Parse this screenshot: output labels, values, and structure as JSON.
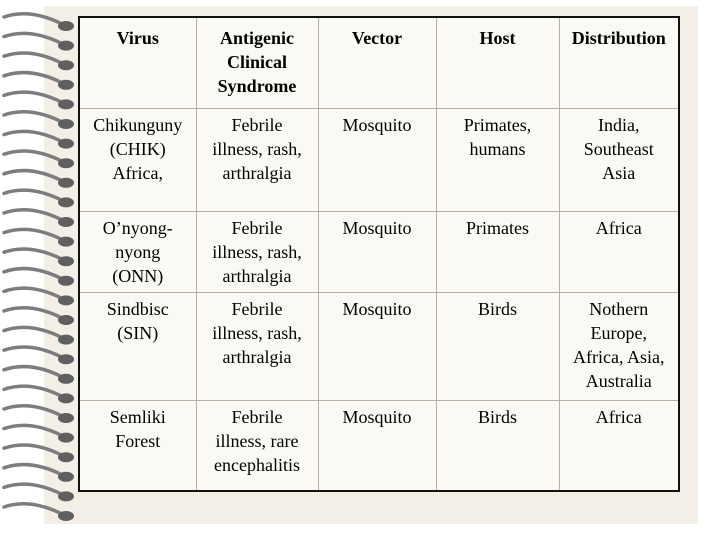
{
  "table": {
    "headers": [
      [
        "Virus"
      ],
      [
        "Antigenic",
        "Clinical",
        "Syndrome"
      ],
      [
        "Vector"
      ],
      [
        "Host"
      ],
      [
        "Distribution"
      ]
    ],
    "rows": [
      [
        [
          "Chikunguny",
          "(CHIK)",
          "Africa,"
        ],
        [
          "Febrile",
          "illness, rash,",
          "arthralgia"
        ],
        [
          "Mosquito"
        ],
        [
          "Primates,",
          "humans"
        ],
        [
          "India,",
          "Southeast",
          "Asia"
        ]
      ],
      [
        [
          "O’nyong-",
          "nyong",
          "(ONN)"
        ],
        [
          "Febrile",
          "illness, rash,",
          "arthralgia"
        ],
        [
          "Mosquito"
        ],
        [
          "Primates"
        ],
        [
          "Africa"
        ]
      ],
      [
        [
          "Sindbisc",
          "(SIN)"
        ],
        [
          "Febrile",
          "illness, rash,",
          "arthralgia"
        ],
        [
          "Mosquito"
        ],
        [
          "Birds"
        ],
        [
          "Nothern",
          "Europe,",
          "Africa, Asia,",
          "Australia"
        ]
      ],
      [
        [
          "Semliki",
          "Forest"
        ],
        [
          "Febrile",
          "illness, rare",
          "encephalitis"
        ],
        [
          "Mosquito"
        ],
        [
          "Birds"
        ],
        [
          "Africa"
        ]
      ]
    ]
  },
  "colors": {
    "page": "#f3efe6",
    "table_background": "#fbf9f3",
    "border": "#111111",
    "spiral": "#7d7d7d"
  },
  "icons": {
    "binding": "spiral-binding-icon"
  }
}
